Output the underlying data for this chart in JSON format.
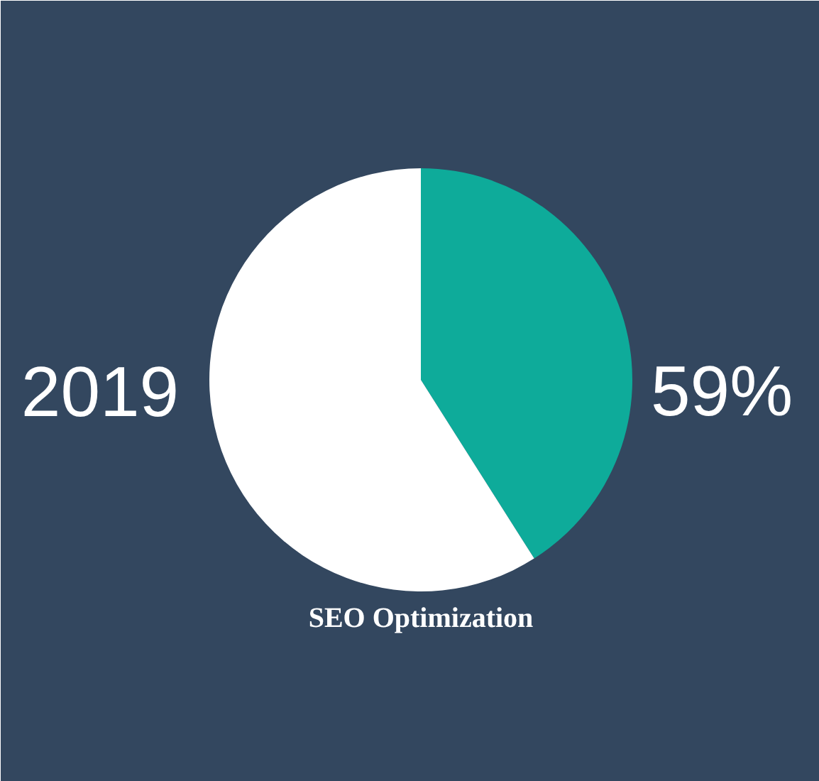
{
  "chart_data": {
    "type": "pie",
    "categories": [
      null,
      null
    ],
    "values": [
      41,
      59
    ],
    "colors": [
      "#0eab9a",
      "#ffffff"
    ],
    "annotations": [
      "2019",
      "59%",
      "SEO Optimization"
    ]
  }
}
